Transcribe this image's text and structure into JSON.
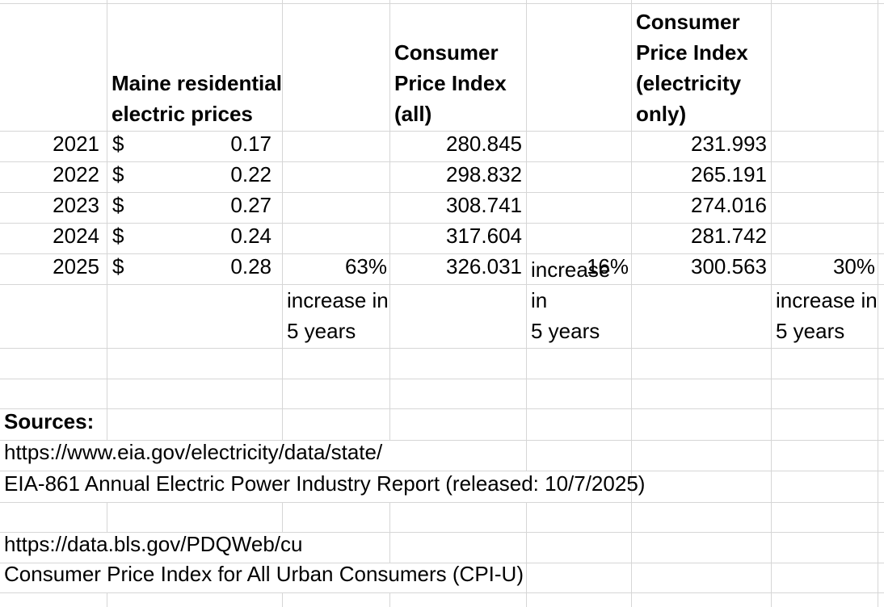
{
  "colors": {
    "background": "#ffffff",
    "text": "#000000",
    "gridline": "#d6d6d6"
  },
  "headers": {
    "maine_prices": "Maine residential\nelectric prices",
    "cpi_all": "Consumer\nPrice Index\n(all)",
    "cpi_electricity": "Consumer\nPrice Index\n(electricity\nonly)"
  },
  "rows": [
    {
      "year": "2021",
      "currency_symbol": "$",
      "maine_price": "0.17",
      "cpi_all": "280.845",
      "cpi_electricity": "231.993"
    },
    {
      "year": "2022",
      "currency_symbol": "$",
      "maine_price": "0.22",
      "cpi_all": "298.832",
      "cpi_electricity": "265.191"
    },
    {
      "year": "2023",
      "currency_symbol": "$",
      "maine_price": "0.27",
      "cpi_all": "308.741",
      "cpi_electricity": "274.016"
    },
    {
      "year": "2024",
      "currency_symbol": "$",
      "maine_price": "0.24",
      "cpi_all": "317.604",
      "cpi_electricity": "281.742"
    },
    {
      "year": "2025",
      "currency_symbol": "$",
      "maine_price": "0.28",
      "cpi_all": "326.031",
      "cpi_electricity": "300.563",
      "maine_increase_pct": "63%",
      "cpi_all_increase_pct": "16%",
      "cpi_electricity_increase_pct": "30%"
    }
  ],
  "increase_note": "increase in\n5 years",
  "sources": {
    "label": "Sources:",
    "eia_url": "https://www.eia.gov/electricity/data/state/",
    "eia_report": "EIA-861 Annual Electric Power Industry Report (released: 10/7/2025)",
    "bls_url": "https://data.bls.gov/PDQWeb/cu",
    "bls_description": "Consumer Price Index for All Urban Consumers (CPI-U)"
  }
}
